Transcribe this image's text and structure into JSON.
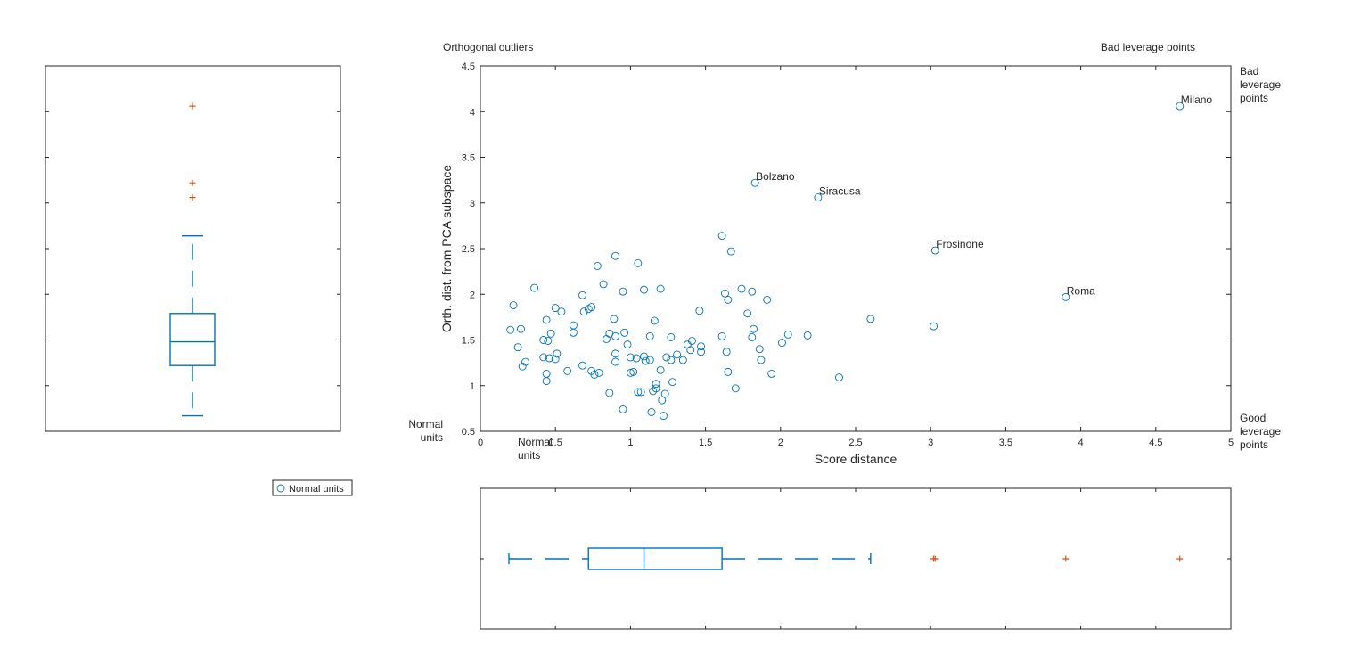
{
  "chart_data": [
    {
      "type": "scatter",
      "title": "",
      "xlabel": "Score distance",
      "ylabel": "Orth. dist. from PCA subspace",
      "xlim": [
        0,
        5
      ],
      "ylim": [
        0.5,
        4.5
      ],
      "xticks": [
        "0",
        "0.5",
        "1",
        "1.5",
        "2",
        "2.5",
        "3",
        "3.5",
        "4",
        "4.5",
        "5"
      ],
      "yticks": [
        "0.5",
        "1",
        "1.5",
        "2",
        "2.5",
        "3",
        "3.5",
        "4",
        "4.5"
      ],
      "marker": "open circle",
      "color": "#0072BD",
      "grid": false,
      "series": [
        {
          "name": "Normal units",
          "points": [
            [
              0.2,
              1.61
            ],
            [
              0.22,
              1.88
            ],
            [
              0.25,
              1.42
            ],
            [
              0.27,
              1.62
            ],
            [
              0.28,
              1.21
            ],
            [
              0.3,
              1.26
            ],
            [
              0.36,
              2.07
            ],
            [
              0.42,
              1.5
            ],
            [
              0.42,
              1.31
            ],
            [
              0.44,
              1.72
            ],
            [
              0.44,
              1.13
            ],
            [
              0.44,
              1.05
            ],
            [
              0.45,
              1.49
            ],
            [
              0.46,
              1.3
            ],
            [
              0.47,
              1.57
            ],
            [
              0.5,
              1.85
            ],
            [
              0.5,
              1.29
            ],
            [
              0.51,
              1.35
            ],
            [
              0.54,
              1.81
            ],
            [
              0.58,
              1.16
            ],
            [
              0.62,
              1.66
            ],
            [
              0.62,
              1.58
            ],
            [
              0.68,
              1.99
            ],
            [
              0.68,
              1.22
            ],
            [
              0.69,
              1.81
            ],
            [
              0.72,
              1.84
            ],
            [
              0.74,
              1.86
            ],
            [
              0.74,
              1.16
            ],
            [
              0.76,
              1.12
            ],
            [
              0.78,
              2.31
            ],
            [
              0.79,
              1.14
            ],
            [
              0.82,
              2.11
            ],
            [
              0.84,
              1.51
            ],
            [
              0.86,
              1.57
            ],
            [
              0.86,
              0.92
            ],
            [
              0.89,
              1.73
            ],
            [
              0.9,
              2.42
            ],
            [
              0.9,
              1.54
            ],
            [
              0.9,
              1.35
            ],
            [
              0.9,
              1.26
            ],
            [
              0.95,
              2.03
            ],
            [
              0.95,
              0.74
            ],
            [
              0.96,
              1.58
            ],
            [
              0.98,
              1.45
            ],
            [
              1.0,
              1.31
            ],
            [
              1.0,
              1.14
            ],
            [
              1.02,
              1.15
            ],
            [
              1.04,
              1.3
            ],
            [
              1.05,
              2.34
            ],
            [
              1.05,
              0.93
            ],
            [
              1.07,
              0.93
            ],
            [
              1.09,
              2.05
            ],
            [
              1.09,
              1.32
            ],
            [
              1.1,
              1.27
            ],
            [
              1.13,
              1.28
            ],
            [
              1.13,
              1.54
            ],
            [
              1.14,
              0.71
            ],
            [
              1.15,
              0.94
            ],
            [
              1.16,
              1.71
            ],
            [
              1.17,
              1.02
            ],
            [
              1.17,
              0.97
            ],
            [
              1.2,
              2.06
            ],
            [
              1.2,
              1.17
            ],
            [
              1.21,
              0.84
            ],
            [
              1.22,
              0.67
            ],
            [
              1.23,
              0.91
            ],
            [
              1.24,
              1.31
            ],
            [
              1.27,
              1.53
            ],
            [
              1.27,
              1.28
            ],
            [
              1.28,
              1.04
            ],
            [
              1.31,
              1.34
            ],
            [
              1.35,
              1.28
            ],
            [
              1.38,
              1.45
            ],
            [
              1.4,
              1.39
            ],
            [
              1.41,
              1.49
            ],
            [
              1.46,
              1.82
            ],
            [
              1.47,
              1.43
            ],
            [
              1.47,
              1.37
            ],
            [
              1.61,
              2.64
            ],
            [
              1.61,
              1.54
            ],
            [
              1.63,
              2.01
            ],
            [
              1.64,
              1.37
            ],
            [
              1.65,
              1.94
            ],
            [
              1.65,
              1.15
            ],
            [
              1.67,
              2.47
            ],
            [
              1.7,
              0.97
            ],
            [
              1.74,
              2.06
            ],
            [
              1.78,
              1.79
            ],
            [
              1.81,
              2.03
            ],
            [
              1.81,
              1.53
            ],
            [
              1.82,
              1.62
            ],
            [
              1.86,
              1.4
            ],
            [
              1.87,
              1.28
            ],
            [
              1.91,
              1.94
            ],
            [
              1.94,
              1.13
            ],
            [
              2.01,
              1.47
            ],
            [
              2.05,
              1.56
            ],
            [
              2.18,
              1.55
            ],
            [
              2.39,
              1.09
            ],
            [
              2.6,
              1.73
            ],
            [
              3.02,
              1.65
            ]
          ]
        }
      ],
      "labeled_points": [
        {
          "name": "Milano",
          "x": 4.66,
          "y": 4.06
        },
        {
          "name": "Bolzano",
          "x": 1.83,
          "y": 3.22
        },
        {
          "name": "Siracusa",
          "x": 2.25,
          "y": 3.06
        },
        {
          "name": "Frosinone",
          "x": 3.03,
          "y": 2.48
        },
        {
          "name": "Roma",
          "x": 3.9,
          "y": 1.97
        }
      ],
      "annotations": {
        "top_left": "Orthogonal outliers",
        "top_right": "Bad leverage points",
        "right_top": "Bad\nleverage\npoints",
        "right_bottom": "Good\nleverage\npoints",
        "left_bottom": "Normal\nunits",
        "bottom_left": "Normal\nunits"
      },
      "legend": {
        "position": "outside-left-below",
        "entries": [
          "Normal units"
        ]
      }
    },
    {
      "type": "boxplot",
      "orientation": "vertical",
      "variable": "Orth. dist. from PCA subspace",
      "ylim": [
        0.5,
        4.5
      ],
      "q1": 1.22,
      "median": 1.48,
      "q3": 1.79,
      "whisker_low": 0.67,
      "whisker_high": 2.64,
      "outliers": [
        4.06,
        3.22,
        3.06
      ],
      "box_color": "#0072BD",
      "outlier_color": "#D95319",
      "tick_labels_shown": false
    },
    {
      "type": "boxplot",
      "orientation": "horizontal",
      "variable": "Score distance",
      "xlim": [
        0,
        5
      ],
      "q1": 0.72,
      "median": 1.09,
      "q3": 1.61,
      "whisker_low": 0.19,
      "whisker_high": 2.6,
      "outliers": [
        3.02,
        3.03,
        3.9,
        4.66
      ],
      "box_color": "#0072BD",
      "outlier_color": "#D95319",
      "tick_labels_shown": false
    }
  ]
}
